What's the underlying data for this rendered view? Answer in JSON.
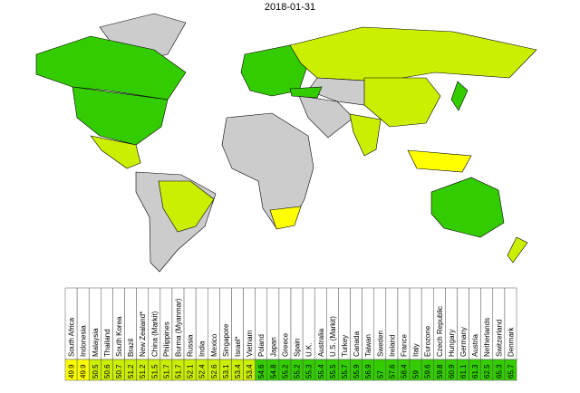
{
  "title": "2018-01-31",
  "unknown_color": "#cccccc",
  "items": [
    {
      "name": "South Africa",
      "value": 49.9,
      "color": "#ffff00"
    },
    {
      "name": "Indonesia",
      "value": 49.9,
      "color": "#ffff00"
    },
    {
      "name": "Malaysia",
      "value": 50.5,
      "color": "#ccee00"
    },
    {
      "name": "Thailand",
      "value": 50.6,
      "color": "#ccee00"
    },
    {
      "name": "South Korea",
      "value": 50.7,
      "color": "#ccee00"
    },
    {
      "name": "Brazil",
      "value": 51.2,
      "color": "#ccee00"
    },
    {
      "name": "New Zealand*",
      "value": 51.2,
      "color": "#ccee00"
    },
    {
      "name": "China (Markit)",
      "value": 51.5,
      "color": "#ccee00"
    },
    {
      "name": "Philippines",
      "value": 51.7,
      "color": "#ccee00"
    },
    {
      "name": "Burma (Myanmar)",
      "value": 51.7,
      "color": "#ccee00"
    },
    {
      "name": "Russia",
      "value": 52.1,
      "color": "#ccee00"
    },
    {
      "name": "India",
      "value": 52.4,
      "color": "#ccee00"
    },
    {
      "name": "Mexico",
      "value": 52.6,
      "color": "#ccee00"
    },
    {
      "name": "Singapore",
      "value": 53.1,
      "color": "#ccee00"
    },
    {
      "name": "Israel*",
      "value": 53.4,
      "color": "#ccee00"
    },
    {
      "name": "Vietnam",
      "value": 53.4,
      "color": "#ccee00"
    },
    {
      "name": "Poland",
      "value": 54.6,
      "color": "#33cc00"
    },
    {
      "name": "Japan",
      "value": 54.8,
      "color": "#33cc00"
    },
    {
      "name": "Greece",
      "value": 55.2,
      "color": "#33cc00"
    },
    {
      "name": "Spain",
      "value": 55.2,
      "color": "#33cc00"
    },
    {
      "name": "U.K.",
      "value": 55.3,
      "color": "#33cc00"
    },
    {
      "name": "Australia",
      "value": 55.4,
      "color": "#33cc00"
    },
    {
      "name": "U.S. (Markit)",
      "value": 55.5,
      "color": "#33cc00"
    },
    {
      "name": "Turkey",
      "value": 55.7,
      "color": "#33cc00"
    },
    {
      "name": "Canada",
      "value": 55.9,
      "color": "#33cc00"
    },
    {
      "name": "Taiwan",
      "value": 56.9,
      "color": "#33cc00"
    },
    {
      "name": "Sweden",
      "value": 57.0,
      "color": "#33cc00"
    },
    {
      "name": "Ireland",
      "value": 57.6,
      "color": "#33cc00"
    },
    {
      "name": "France",
      "value": 58.4,
      "color": "#33cc00"
    },
    {
      "name": "Italy",
      "value": 59.0,
      "color": "#33cc00"
    },
    {
      "name": "Eurozone",
      "value": 59.6,
      "color": "#33cc00"
    },
    {
      "name": "Czech Republic",
      "value": 59.8,
      "color": "#33cc00"
    },
    {
      "name": "Hungary",
      "value": 60.9,
      "color": "#33cc00"
    },
    {
      "name": "Germany",
      "value": 61.1,
      "color": "#33cc00"
    },
    {
      "name": "Austria",
      "value": 61.3,
      "color": "#33cc00"
    },
    {
      "name": "Netherlands",
      "value": 62.5,
      "color": "#33cc00"
    },
    {
      "name": "Switzerland",
      "value": 65.3,
      "color": "#33cc00"
    },
    {
      "name": "Denmark",
      "value": 65.7,
      "color": "#33cc00"
    }
  ]
}
